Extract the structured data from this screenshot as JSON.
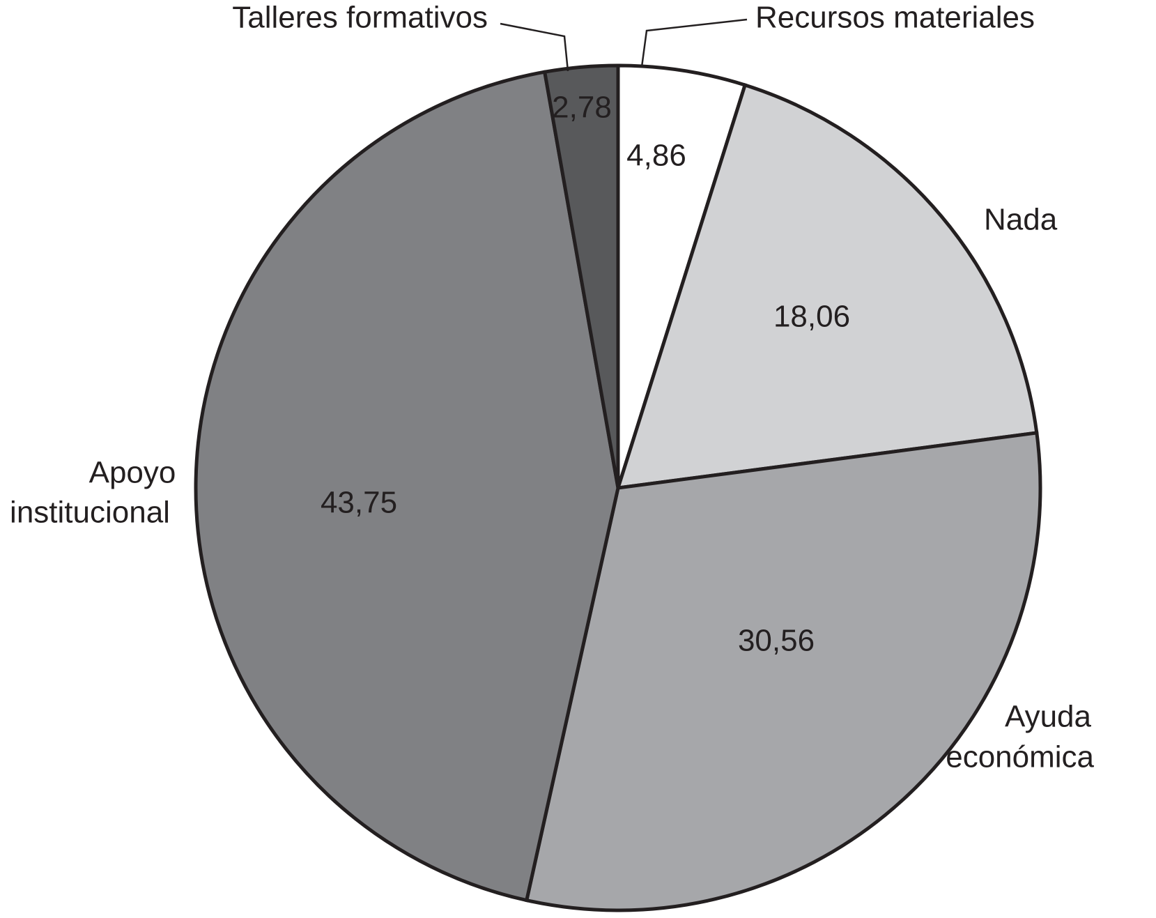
{
  "chart_data": {
    "type": "pie",
    "title": "",
    "slices": [
      {
        "label": "Recursos materiales",
        "value_text": "4,86",
        "value": 4.86,
        "color": "#ffffff"
      },
      {
        "label": "Nada",
        "value_text": "18,06",
        "value": 18.06,
        "color": "#d1d2d4"
      },
      {
        "label": "Ayuda económica",
        "value_text": "30,56",
        "value": 30.56,
        "color": "#a6a7aa"
      },
      {
        "label": "Apoyo institucional",
        "value_text": "43,75",
        "value": 43.75,
        "color": "#808184"
      },
      {
        "label": "Talleres formativos",
        "value_text": "2,78",
        "value": 2.78,
        "color": "#58595b"
      }
    ],
    "start_angle": "12 o'clock",
    "direction": "clockwise",
    "legend": "none"
  }
}
